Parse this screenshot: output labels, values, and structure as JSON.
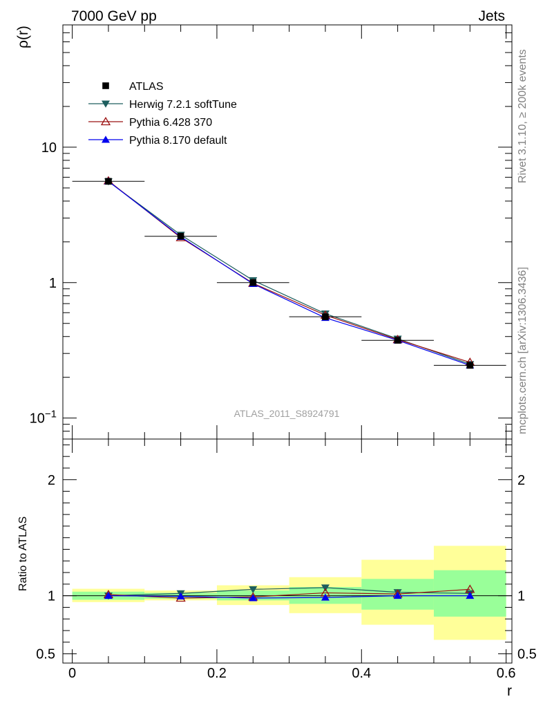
{
  "header": {
    "left_label": "7000 GeV pp",
    "right_label": "Jets",
    "side_label_1": "Rivet 3.1.10, ≥ 200k events",
    "side_label_2": "mcplots.cern.ch [arXiv:1306.3436]",
    "watermark": "ATLAS_2011_S8924791"
  },
  "chart_data": [
    {
      "type": "line",
      "panel": "main",
      "ylabel": "ρ(r)",
      "yscale": "log",
      "ylim": [
        0.07,
        80
      ],
      "xlim": [
        -0.013,
        0.608
      ],
      "yticks": [
        {
          "value": 0.1,
          "base": "10",
          "exp": "−1"
        },
        {
          "value": 1,
          "base": "1",
          "exp": ""
        },
        {
          "value": 10,
          "base": "10",
          "exp": ""
        }
      ],
      "legend_position": "top-left",
      "x": [
        0.05,
        0.15,
        0.25,
        0.35,
        0.45,
        0.55
      ],
      "series": [
        {
          "name": "ATLAS",
          "marker": "square",
          "color": "#000000",
          "values": [
            5.6,
            2.2,
            1.0,
            0.56,
            0.375,
            0.245
          ],
          "bands": [
            [
              0.05,
              0.1
            ],
            [
              0.15,
              0.2
            ],
            [
              0.25,
              0.3
            ],
            [
              0.35,
              0.4
            ],
            [
              0.45,
              0.5
            ],
            [
              0.55,
              0.6
            ]
          ]
        },
        {
          "name": "Herwig 7.2.1 softTune",
          "marker": "triangle-down",
          "color": "#1d5e5e",
          "values": [
            5.58,
            2.25,
            1.04,
            0.59,
            0.385,
            0.25
          ]
        },
        {
          "name": "Pythia 6.428 370",
          "marker": "triangle-up-open",
          "color": "#9b1111",
          "values": [
            5.65,
            2.15,
            0.99,
            0.575,
            0.38,
            0.258
          ]
        },
        {
          "name": "Pythia 8.170 default",
          "marker": "triangle-up",
          "color": "#0000ee",
          "values": [
            5.6,
            2.18,
            0.98,
            0.55,
            0.375,
            0.245
          ]
        }
      ]
    },
    {
      "type": "line",
      "panel": "ratio",
      "ylabel": "Ratio to ATLAS",
      "xlabel": "r",
      "ylim": [
        0.42,
        2.35
      ],
      "xlim": [
        -0.013,
        0.608
      ],
      "yticks": [
        0.5,
        1,
        2
      ],
      "xticks": [
        0,
        0.2,
        0.4,
        0.6
      ],
      "xtick_labels": [
        "0",
        "0.2",
        "0.4",
        "0.6"
      ],
      "reference": 1,
      "bands": {
        "colors": {
          "inner": "#99ff99",
          "outer": "#ffff99"
        },
        "bins": [
          {
            "x0": 0.0,
            "x1": 0.1,
            "inner": [
              0.965,
              1.035
            ],
            "outer": [
              0.945,
              1.06
            ]
          },
          {
            "x0": 0.1,
            "x1": 0.2,
            "inner": [
              0.975,
              1.025
            ],
            "outer": [
              0.96,
              1.045
            ]
          },
          {
            "x0": 0.2,
            "x1": 0.3,
            "inner": [
              0.96,
              1.045
            ],
            "outer": [
              0.92,
              1.09
            ]
          },
          {
            "x0": 0.3,
            "x1": 0.4,
            "inner": [
              0.93,
              1.075
            ],
            "outer": [
              0.85,
              1.16
            ]
          },
          {
            "x0": 0.4,
            "x1": 0.5,
            "inner": [
              0.88,
              1.145
            ],
            "outer": [
              0.75,
              1.31
            ]
          },
          {
            "x0": 0.5,
            "x1": 0.6,
            "inner": [
              0.82,
              1.22
            ],
            "outer": [
              0.62,
              1.43
            ]
          }
        ]
      },
      "x": [
        0.05,
        0.15,
        0.25,
        0.35,
        0.45,
        0.55
      ],
      "series": [
        {
          "name": "Herwig 7.2.1 softTune",
          "marker": "triangle-down",
          "color": "#1d5e5e",
          "values": [
            1.0,
            1.02,
            1.055,
            1.07,
            1.03,
            1.02
          ]
        },
        {
          "name": "Pythia 6.428 370",
          "marker": "triangle-up-open",
          "color": "#9b1111",
          "values": [
            1.01,
            0.98,
            0.99,
            1.025,
            1.015,
            1.055
          ]
        },
        {
          "name": "Pythia 8.170 default",
          "marker": "triangle-up",
          "color": "#0000ee",
          "values": [
            1.0,
            0.995,
            0.98,
            0.985,
            1.0,
            1.0
          ]
        }
      ]
    }
  ]
}
